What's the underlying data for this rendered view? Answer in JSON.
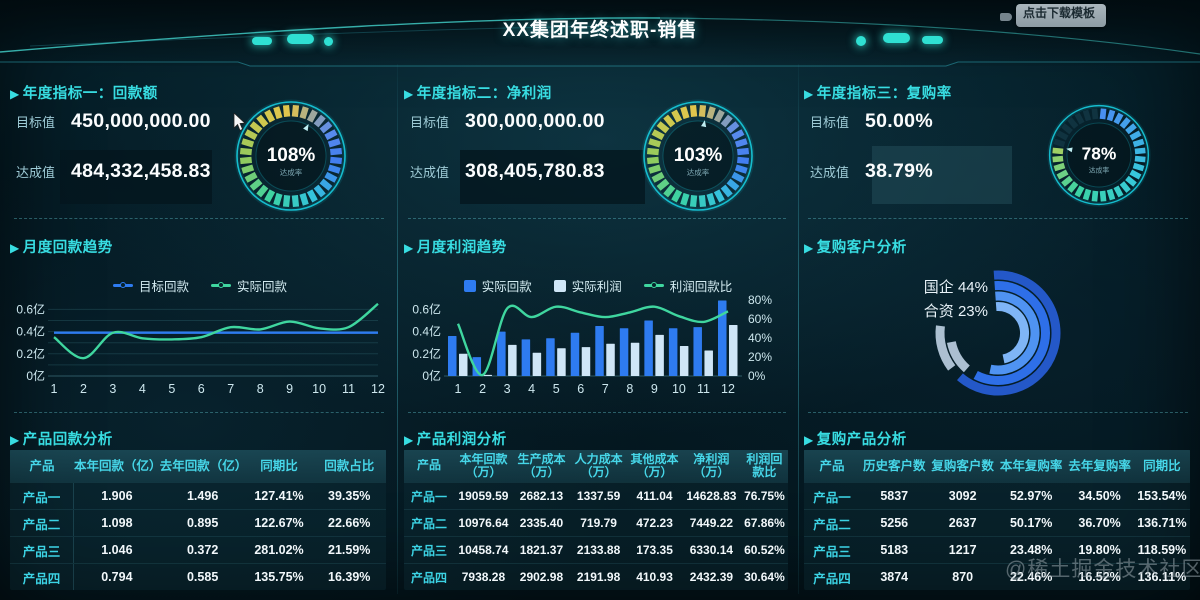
{
  "header": {
    "title": "XX集团年终述职-销售",
    "download_button": "点击下载模板"
  },
  "watermark": "@稀土掘金技术社区",
  "colors": {
    "accent_cyan": "#38dde2",
    "line_blue": "#2e7bf0",
    "line_green": "#3fd69f",
    "bar_blue": "#2e7bf0",
    "bar_light": "#cfe6f7",
    "ring_blues": [
      "#2458c8",
      "#2e6fe8",
      "#4f93f2",
      "#7fb5f6"
    ]
  },
  "columns": [
    {
      "kpi": {
        "title": "年度指标一：回款额",
        "target_label": "目标值",
        "target_value": "450,000,000.00",
        "achieved_label": "达成值",
        "achieved_value": "484,332,458.83"
      },
      "trend_title": "月度回款趋势",
      "table": {
        "title": "产品回款分析",
        "headers": [
          "产品",
          "本年回款（亿）",
          "去年回款（亿）",
          "同期比",
          "回款占比"
        ],
        "rows": [
          [
            "产品一",
            "1.906",
            "1.496",
            "127.41%",
            "39.35%"
          ],
          [
            "产品二",
            "1.098",
            "0.895",
            "122.67%",
            "22.66%"
          ],
          [
            "产品三",
            "1.046",
            "0.372",
            "281.02%",
            "21.59%"
          ],
          [
            "产品四",
            "0.794",
            "0.585",
            "135.75%",
            "16.39%"
          ]
        ]
      }
    },
    {
      "kpi": {
        "title": "年度指标二：净利润",
        "target_label": "目标值",
        "target_value": "300,000,000.00",
        "achieved_label": "达成值",
        "achieved_value": "308,405,780.83"
      },
      "trend_title": "月度利润趋势",
      "table": {
        "title": "产品利润分析",
        "headers": [
          "产品",
          "本年回款（万）",
          "生产成本（万）",
          "人力成本（万）",
          "其他成本（万）",
          "净利润（万）",
          "利润回款比"
        ],
        "rows": [
          [
            "产品一",
            "19059.59",
            "2682.13",
            "1337.59",
            "411.04",
            "14628.83",
            "76.75%"
          ],
          [
            "产品二",
            "10976.64",
            "2335.40",
            "719.79",
            "472.23",
            "7449.22",
            "67.86%"
          ],
          [
            "产品三",
            "10458.74",
            "1821.37",
            "2133.88",
            "173.35",
            "6330.14",
            "60.52%"
          ],
          [
            "产品四",
            "7938.28",
            "2902.98",
            "2191.98",
            "410.93",
            "2432.39",
            "30.64%"
          ]
        ]
      }
    },
    {
      "kpi": {
        "title": "年度指标三：复购率",
        "target_label": "目标值",
        "target_value": "50.00%",
        "achieved_label": "达成值",
        "achieved_value": "38.79%"
      },
      "trend_title": "复购客户分析",
      "table": {
        "title": "复购产品分析",
        "headers": [
          "产品",
          "历史客户数",
          "复购客户数",
          "本年复购率",
          "去年复购率",
          "同期比"
        ],
        "rows": [
          [
            "产品一",
            "5837",
            "3092",
            "52.97%",
            "34.50%",
            "153.54%"
          ],
          [
            "产品二",
            "5256",
            "2637",
            "50.17%",
            "36.70%",
            "136.71%"
          ],
          [
            "产品三",
            "5183",
            "1217",
            "23.48%",
            "19.80%",
            "118.59%"
          ],
          [
            "产品四",
            "3874",
            "870",
            "22.46%",
            "16.52%",
            "136.11%"
          ]
        ]
      }
    }
  ],
  "chart_data": [
    {
      "id": "gauge1",
      "type": "gauge",
      "title": "回款额达成率",
      "percent": 108,
      "label": "108%",
      "sublabel": "达成率"
    },
    {
      "id": "gauge2",
      "type": "gauge",
      "title": "净利润达成率",
      "percent": 103,
      "label": "103%",
      "sublabel": "达成率"
    },
    {
      "id": "gauge3",
      "type": "gauge",
      "title": "复购率达成率",
      "percent": 78,
      "label": "78%",
      "sublabel": "达成率"
    },
    {
      "id": "trend_left",
      "type": "line",
      "title": "月度回款趋势",
      "x": [
        1,
        2,
        3,
        4,
        5,
        6,
        7,
        8,
        9,
        10,
        11,
        12
      ],
      "series": [
        {
          "name": "目标回款",
          "color": "#2e7bf0",
          "values": [
            0.39,
            0.39,
            0.39,
            0.39,
            0.39,
            0.39,
            0.39,
            0.39,
            0.39,
            0.39,
            0.39,
            0.39
          ]
        },
        {
          "name": "实际回款",
          "color": "#3fd69f",
          "values": [
            0.35,
            0.16,
            0.39,
            0.34,
            0.33,
            0.35,
            0.44,
            0.42,
            0.49,
            0.43,
            0.44,
            0.65
          ]
        }
      ],
      "y_ticks": [
        "0亿",
        "0.2亿",
        "0.4亿",
        "0.6亿"
      ],
      "ylim": [
        0,
        0.65
      ],
      "grid": true,
      "legend_position": "top"
    },
    {
      "id": "trend_mid",
      "type": "bar+line",
      "title": "月度利润趋势",
      "x": [
        1,
        2,
        3,
        4,
        5,
        6,
        7,
        8,
        9,
        10,
        11,
        12
      ],
      "series": [
        {
          "name": "实际回款",
          "kind": "bar",
          "color": "#2e7bf0",
          "values": [
            0.36,
            0.17,
            0.4,
            0.33,
            0.34,
            0.39,
            0.45,
            0.43,
            0.5,
            0.43,
            0.44,
            0.68
          ]
        },
        {
          "name": "实际利润",
          "kind": "bar",
          "color": "#cfe6f7",
          "values": [
            0.2,
            0.01,
            0.28,
            0.21,
            0.25,
            0.26,
            0.29,
            0.3,
            0.37,
            0.27,
            0.23,
            0.46
          ]
        },
        {
          "name": "利润回款比",
          "kind": "line",
          "color": "#3fd69f",
          "axis": "right",
          "values": [
            55,
            1,
            71,
            62,
            73,
            67,
            62,
            67,
            73,
            63,
            57,
            68
          ]
        }
      ],
      "y_ticks_left": [
        "0亿",
        "0.2亿",
        "0.4亿",
        "0.6亿"
      ],
      "y_ticks_right": [
        "0%",
        "20%",
        "40%",
        "60%",
        "80%"
      ],
      "ylim_left": [
        0,
        0.65
      ],
      "ylim_right": [
        0,
        80
      ],
      "legend_position": "top"
    },
    {
      "id": "rings",
      "type": "rings",
      "title": "复购客户分析",
      "labels": [
        "国企 44%",
        "合资 23%"
      ],
      "rings": [
        {
          "sweep": 225,
          "color": "#2458c8"
        },
        {
          "sweep": 212,
          "color": "#2e6fe8"
        },
        {
          "sweep": 196,
          "color": "#4f93f2"
        },
        {
          "sweep": 172,
          "color": "#7fb5f6"
        }
      ],
      "pale_arcs": [
        {
          "ring": 0,
          "start": 233,
          "sweep": 44
        },
        {
          "ring": 1,
          "start": 221,
          "sweep": 38
        }
      ],
      "pale_color": "#c9dcee"
    }
  ]
}
